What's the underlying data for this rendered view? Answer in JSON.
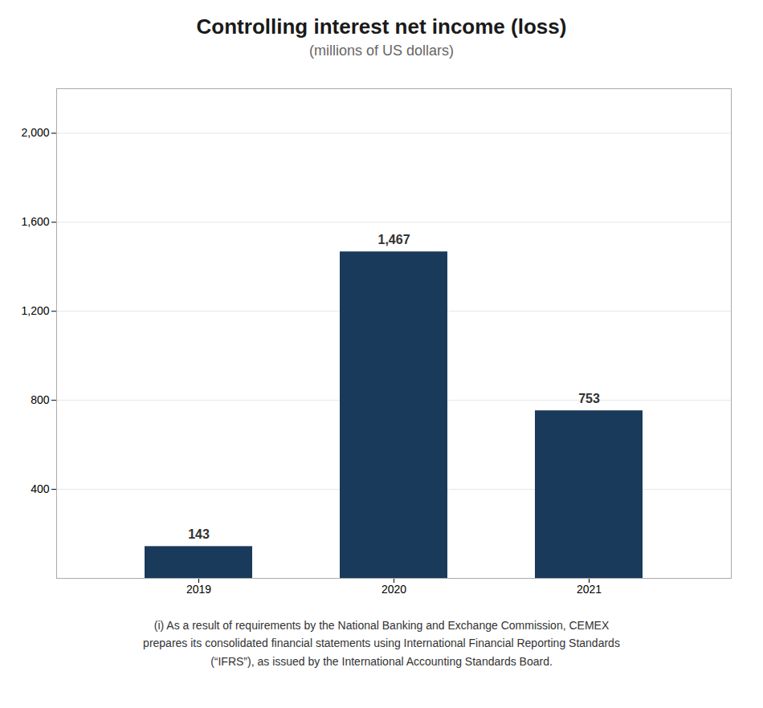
{
  "chart_data": {
    "type": "bar",
    "title": "Controlling interest net income (loss)",
    "subtitle": "(millions of US dollars)",
    "footnote": "(i) As a result of requirements by the National Banking and Exchange Commission, CEMEX\nprepares its consolidated financial statements using International Financial Reporting Standards\n(“IFRS”), as issued by the International Accounting Standards Board.",
    "categories": [
      "2019",
      "2020",
      "2021"
    ],
    "values": [
      143,
      1467,
      753
    ],
    "value_labels": [
      "143",
      "1,467",
      "753"
    ],
    "data_labels": true,
    "color": "#1a3a5c",
    "ylim": [
      0,
      2200
    ],
    "yticks": [
      400,
      800,
      {
        "value": 1200,
        "label": "1,200"
      },
      {
        "value": 1600,
        "label": "1,600"
      },
      {
        "value": 2000,
        "label": "2,000"
      }
    ],
    "grid": true
  }
}
